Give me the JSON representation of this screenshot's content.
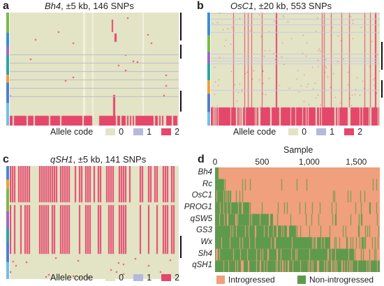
{
  "colors": {
    "allele0": "#e3e3c6",
    "allele1": "#b6b8dc",
    "allele2": "#e5476a",
    "introgressed": "#f0a07c",
    "non_introgressed": "#5e9a4c"
  },
  "panels": [
    {
      "letter": "a",
      "gene": "Bh4",
      "detail": ", ±5 kb, 146 SNPs"
    },
    {
      "letter": "b",
      "gene": "OsC1",
      "detail": ", ±20 kb, 553 SNPs"
    },
    {
      "letter": "c",
      "gene": "qSH1",
      "detail": ", ±5 kb, 141 SNPs"
    },
    {
      "letter": "d"
    }
  ],
  "allele_legend": {
    "title": "Allele code",
    "codes": [
      "0",
      "1",
      "2"
    ]
  },
  "panel_d": {
    "axis_label": "Sample",
    "ticks": [
      "0",
      "500",
      "1,000",
      "1,500"
    ],
    "tick_values": [
      0,
      500,
      1000,
      1500
    ],
    "sample_max": 1750,
    "genes": [
      "Bh4",
      "Rc",
      "OsC1",
      "PROG1",
      "qSW5",
      "GS3",
      "Wx",
      "Sh4",
      "qSH1"
    ],
    "legend": [
      "Introgressed",
      "Non-introgressed"
    ]
  }
}
